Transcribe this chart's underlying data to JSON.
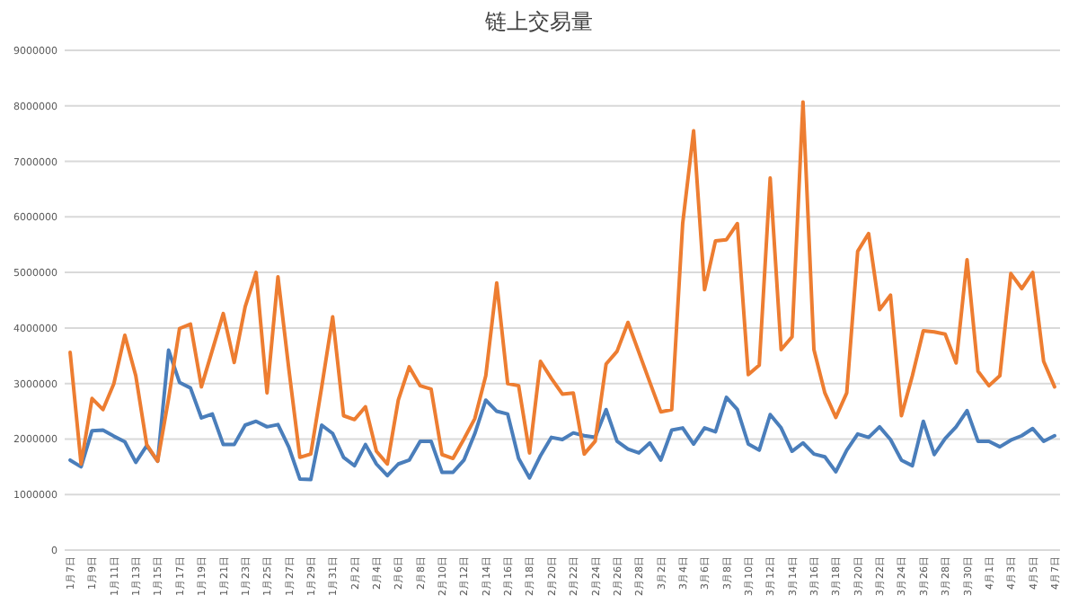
{
  "chart_data": {
    "type": "line",
    "title": "链上交易量",
    "categories": [
      "1月7日",
      null,
      "1月9日",
      null,
      "1月11日",
      null,
      "1月13日",
      null,
      "1月15日",
      null,
      "1月17日",
      null,
      "1月19日",
      null,
      "1月21日",
      null,
      "1月23日",
      null,
      "1月25日",
      null,
      "1月27日",
      null,
      "1月29日",
      null,
      "1月31日",
      null,
      "2月2日",
      null,
      "2月4日",
      null,
      "2月6日",
      null,
      "2月8日",
      null,
      "2月10日",
      null,
      "2月12日",
      null,
      "2月14日",
      null,
      "2月16日",
      null,
      "2月18日",
      null,
      "2月20日",
      null,
      "2月22日",
      null,
      "2月24日",
      null,
      "2月26日",
      null,
      "2月28日",
      null,
      "3月2日",
      null,
      "3月4日",
      null,
      "3月6日",
      null,
      "3月8日",
      null,
      "3月10日",
      null,
      "3月12日",
      null,
      "3月14日",
      null,
      "3月16日",
      null,
      "3月18日",
      null,
      "3月20日",
      null,
      "3月22日",
      null,
      "3月24日",
      null,
      "3月26日",
      null,
      "3月28日",
      null,
      "3月30日",
      null,
      "4月1日",
      null,
      "4月3日",
      null,
      "4月5日",
      null,
      "4月7日"
    ],
    "series": [
      {
        "color": "#4a7ebb",
        "values": [
          1620000,
          1500000,
          2150000,
          2160000,
          2050000,
          1950000,
          1580000,
          1880000,
          1600000,
          3600000,
          3020000,
          2920000,
          2380000,
          2450000,
          1900000,
          1900000,
          2250000,
          2320000,
          2220000,
          2260000,
          1850000,
          1280000,
          1270000,
          2250000,
          2100000,
          1670000,
          1520000,
          1900000,
          1550000,
          1340000,
          1550000,
          1620000,
          1960000,
          1960000,
          1400000,
          1400000,
          1620000,
          2100000,
          2700000,
          2500000,
          2450000,
          1650000,
          1300000,
          1700000,
          2030000,
          1990000,
          2110000,
          2060000,
          2030000,
          2530000,
          1960000,
          1820000,
          1750000,
          1930000,
          1620000,
          2160000,
          2200000,
          1910000,
          2200000,
          2130000,
          2750000,
          2530000,
          1910000,
          1800000,
          2440000,
          2200000,
          1780000,
          1930000,
          1730000,
          1680000,
          1410000,
          1800000,
          2090000,
          2030000,
          2220000,
          1990000,
          1620000,
          1520000,
          2320000,
          1720000,
          2010000,
          2220000,
          2510000,
          1960000,
          1960000,
          1860000,
          1980000,
          2060000,
          2190000,
          1960000,
          2060000
        ]
      },
      {
        "color": "#ed7d31",
        "values": [
          3560000,
          1550000,
          2730000,
          2530000,
          3000000,
          3870000,
          3140000,
          1900000,
          1600000,
          2730000,
          3990000,
          4070000,
          2940000,
          3600000,
          4260000,
          3380000,
          4380000,
          5000000,
          2830000,
          4920000,
          3250000,
          1670000,
          1730000,
          2940000,
          4200000,
          2420000,
          2350000,
          2580000,
          1780000,
          1550000,
          2700000,
          3300000,
          2960000,
          2900000,
          1720000,
          1650000,
          2000000,
          2370000,
          3140000,
          4810000,
          3000000,
          2960000,
          1750000,
          3400000,
          3090000,
          2810000,
          2830000,
          1730000,
          1960000,
          3350000,
          3580000,
          4100000,
          3560000,
          3020000,
          2490000,
          2530000,
          5880000,
          7550000,
          4690000,
          5570000,
          5590000,
          5880000,
          3160000,
          3330000,
          6700000,
          3610000,
          3840000,
          8070000,
          3610000,
          2830000,
          2390000,
          2830000,
          5380000,
          5700000,
          4330000,
          4590000,
          2420000,
          3140000,
          3950000,
          3930000,
          3890000,
          3370000,
          5230000,
          3220000,
          2960000,
          3140000,
          4980000,
          4710000,
          5000000,
          3400000,
          2940000
        ]
      }
    ],
    "ylim": [
      0,
      9000000
    ],
    "yticks": [
      0,
      1000000,
      2000000,
      3000000,
      4000000,
      5000000,
      6000000,
      7000000,
      8000000,
      9000000
    ],
    "grid": "y",
    "line_style": "solid",
    "marker": "none"
  }
}
